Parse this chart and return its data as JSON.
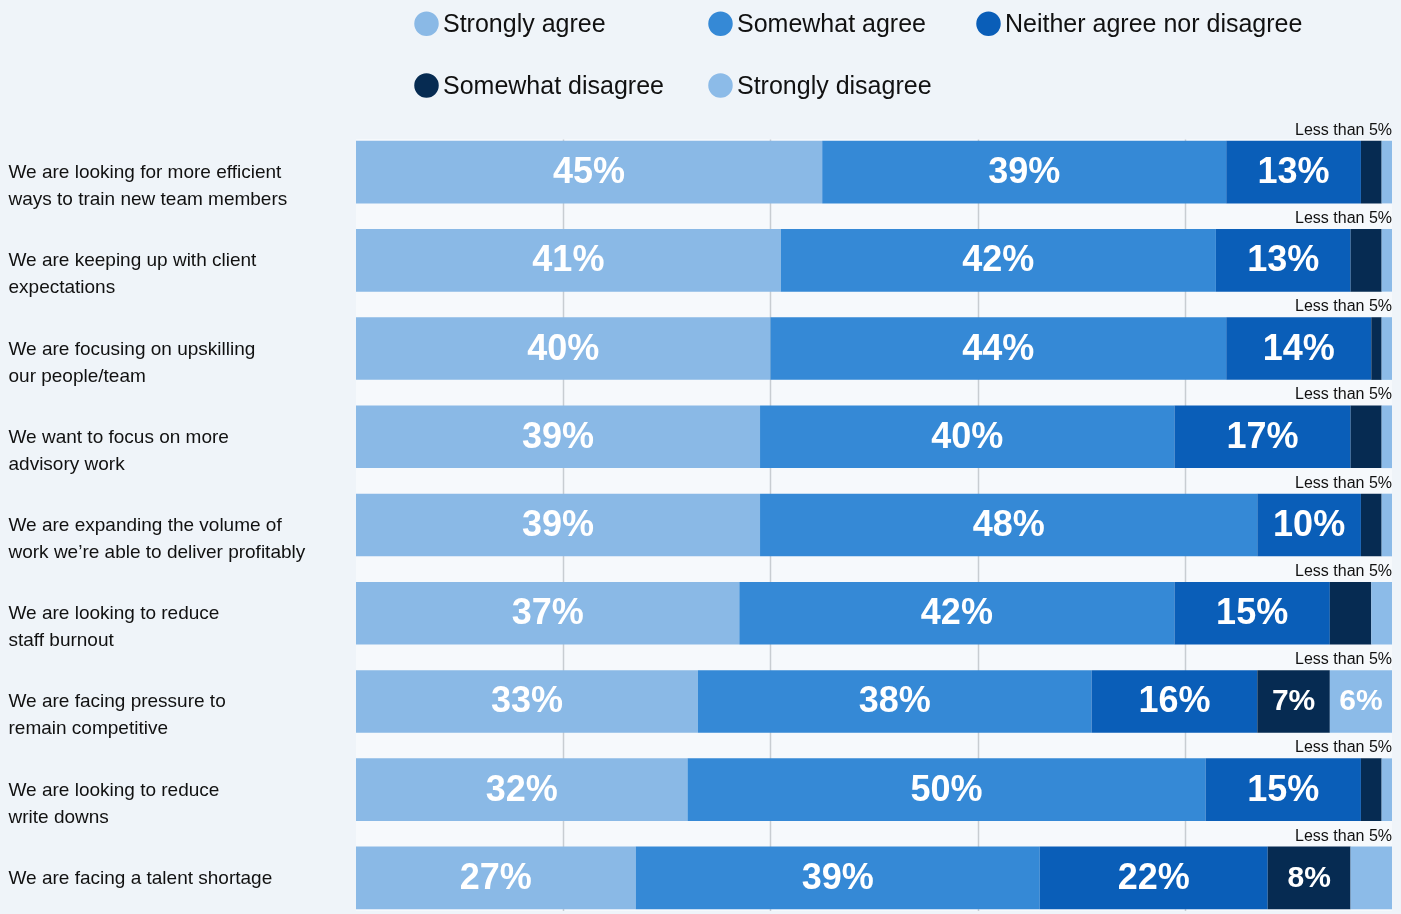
{
  "chart_data": {
    "type": "bar",
    "orientation": "horizontal",
    "stacked": true,
    "categories": [
      "We are looking for more efficient\nways to train new team members",
      "We are keeping up with client\nexpectations",
      "We are focusing on upskilling\nour people/team",
      "We want to focus on more\nadvisory work",
      "We are expanding the volume of\nwork we’re able to deliver profitably",
      "We are looking to reduce\nstaff burnout",
      "We are facing pressure to\nremain competitive",
      "We are looking to reduce\nwrite downs",
      "We are facing a talent shortage"
    ],
    "series": [
      {
        "name": "Strongly agree",
        "color": "#8ab9e6",
        "values": [
          45,
          41,
          40,
          39,
          39,
          37,
          33,
          32,
          27
        ],
        "value_labels": [
          "45%",
          "41%",
          "40%",
          "39%",
          "39%",
          "37%",
          "33%",
          "32%",
          "27%"
        ]
      },
      {
        "name": "Somewhat agree",
        "color": "#3589d6",
        "values": [
          39,
          42,
          44,
          40,
          48,
          42,
          38,
          50,
          39
        ],
        "value_labels": [
          "39%",
          "42%",
          "44%",
          "40%",
          "48%",
          "42%",
          "38%",
          "50%",
          "39%"
        ]
      },
      {
        "name": "Neither agree nor disagree",
        "color": "#0a5eb8",
        "values": [
          13,
          13,
          14,
          17,
          10,
          15,
          16,
          15,
          22
        ],
        "value_labels": [
          "13%",
          "13%",
          "14%",
          "17%",
          "10%",
          "15%",
          "16%",
          "15%",
          "22%"
        ]
      },
      {
        "name": "Somewhat disagree",
        "color": "#062b52",
        "values": [
          2,
          3,
          1,
          3,
          2,
          4,
          7,
          2,
          8
        ],
        "value_labels": [
          null,
          null,
          null,
          null,
          null,
          null,
          "7%",
          null,
          "8%"
        ]
      },
      {
        "name": "Strongly disagree",
        "color": "#8cbbe8",
        "values": [
          1,
          1,
          1,
          1,
          1,
          2,
          6,
          1,
          4
        ],
        "value_labels": [
          null,
          null,
          null,
          null,
          null,
          null,
          "6%",
          null,
          null
        ]
      }
    ],
    "xlim": [
      0,
      100
    ],
    "xticks": [
      {
        "value": 20,
        "label": null
      },
      {
        "value": 40,
        "label": null
      },
      {
        "value": 60,
        "label": null
      },
      {
        "value": 80,
        "label": null
      }
    ],
    "grid": "x",
    "tick_labels": "y",
    "legend": "top",
    "annotations": [
      "Less than 5%",
      "Less than 5%",
      "Less than 5%",
      "Less than 5%",
      "Less than 5%",
      "Less than 5%",
      "Less than 5%",
      "Less than 5%",
      "Less than 5%"
    ]
  }
}
